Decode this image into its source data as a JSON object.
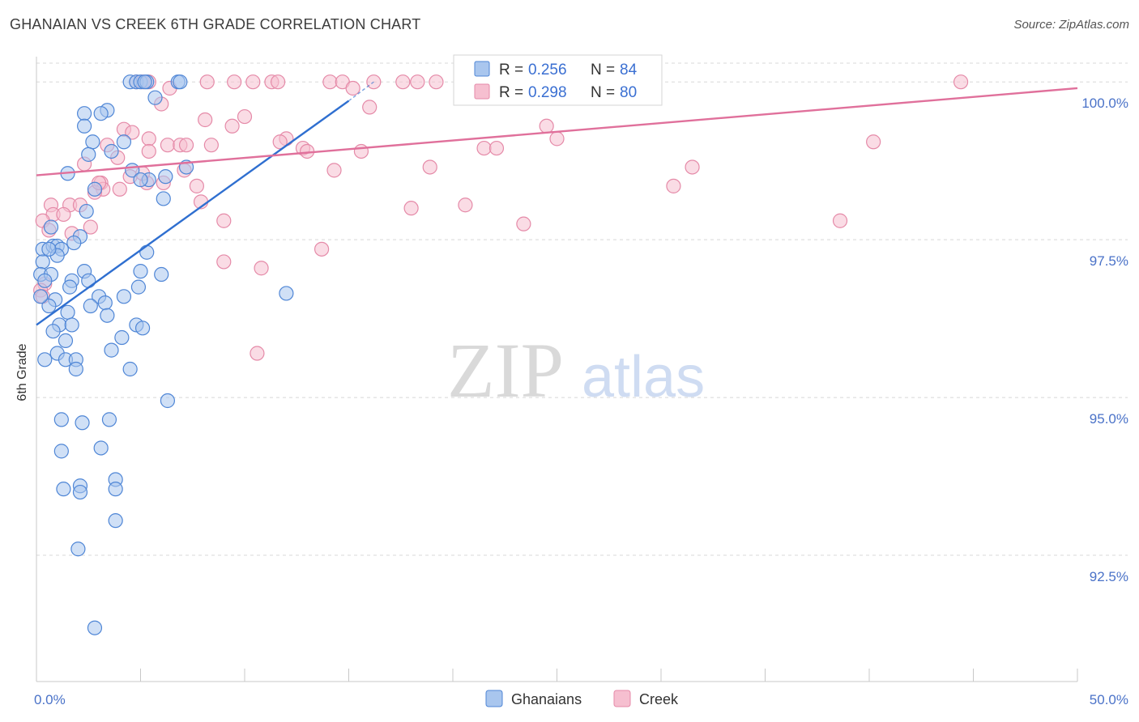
{
  "header": {
    "title": "GHANAIAN VS CREEK 6TH GRADE CORRELATION CHART",
    "source": "Source: ZipAtlas.com"
  },
  "watermark": {
    "zip": "ZIP",
    "atlas": "atlas"
  },
  "legend": {
    "rows": [
      {
        "r_label": "R = ",
        "r_value": "0.256",
        "n_label": "N = ",
        "n_value": "84"
      },
      {
        "r_label": "R = ",
        "r_value": "0.298",
        "n_label": "N = ",
        "n_value": "80"
      }
    ]
  },
  "bottom_legend": {
    "ghanaians": "Ghanaians",
    "creek": "Creek"
  },
  "colors": {
    "ghanaians_fill": "#a9c6ee",
    "ghanaians_stroke": "#4f86d6",
    "ghanaians_line": "#2f6fd0",
    "creek_fill": "#f6bfd0",
    "creek_stroke": "#e58aa8",
    "creek_line": "#e0709b",
    "grid": "#d8d8d8",
    "tick_text": "#4a72c8"
  },
  "chart_data": {
    "type": "scatter",
    "title": "GHANAIAN VS CREEK 6TH GRADE CORRELATION CHART",
    "xlabel": "",
    "ylabel": "6th Grade",
    "xlim": [
      0,
      50
    ],
    "ylim": [
      90.5,
      100.4
    ],
    "x_tick_labels": [
      {
        "value": 0,
        "label": "0.0%"
      },
      {
        "value": 50,
        "label": "50.0%"
      }
    ],
    "y_tick_labels": [
      {
        "value": 100,
        "label": "100.0%"
      },
      {
        "value": 97.5,
        "label": "97.5%"
      },
      {
        "value": 95,
        "label": "95.0%"
      },
      {
        "value": 92.5,
        "label": "92.5%"
      }
    ],
    "series": [
      {
        "name": "Ghanaians",
        "R": 0.256,
        "N": 84,
        "trend": {
          "x": [
            0,
            15
          ],
          "y": [
            96.15,
            99.7
          ],
          "dashed_extension_x": [
            15,
            16.2
          ],
          "dashed_extension_y": [
            99.7,
            100.0
          ]
        },
        "points": [
          [
            4.5,
            100
          ],
          [
            4.8,
            100
          ],
          [
            5.0,
            100
          ],
          [
            5.3,
            100
          ],
          [
            6.8,
            100
          ],
          [
            5.7,
            99.75
          ],
          [
            5.2,
            100
          ],
          [
            3.4,
            99.55
          ],
          [
            3.1,
            99.5
          ],
          [
            2.3,
            99.5
          ],
          [
            2.3,
            99.3
          ],
          [
            2.7,
            99.05
          ],
          [
            4.2,
            99.05
          ],
          [
            2.5,
            98.85
          ],
          [
            4.6,
            98.6
          ],
          [
            1.5,
            98.55
          ],
          [
            6.2,
            98.5
          ],
          [
            5.4,
            98.45
          ],
          [
            2.8,
            98.3
          ],
          [
            7.2,
            98.65
          ],
          [
            6.1,
            98.15
          ],
          [
            2.4,
            97.95
          ],
          [
            0.7,
            97.7
          ],
          [
            2.1,
            97.55
          ],
          [
            0.3,
            97.35
          ],
          [
            0.8,
            97.4
          ],
          [
            1.0,
            97.4
          ],
          [
            1.2,
            97.35
          ],
          [
            1.0,
            97.25
          ],
          [
            0.3,
            97.15
          ],
          [
            5.3,
            97.3
          ],
          [
            2.3,
            97.0
          ],
          [
            0.2,
            96.95
          ],
          [
            0.7,
            96.95
          ],
          [
            5.0,
            97.0
          ],
          [
            6.0,
            96.95
          ],
          [
            0.4,
            96.85
          ],
          [
            1.7,
            96.85
          ],
          [
            2.5,
            96.85
          ],
          [
            4.9,
            96.75
          ],
          [
            1.6,
            96.75
          ],
          [
            12.0,
            96.65
          ],
          [
            3.0,
            96.6
          ],
          [
            4.2,
            96.6
          ],
          [
            0.9,
            96.55
          ],
          [
            3.3,
            96.5
          ],
          [
            2.6,
            96.45
          ],
          [
            0.6,
            96.45
          ],
          [
            1.5,
            96.35
          ],
          [
            3.4,
            96.3
          ],
          [
            1.1,
            96.15
          ],
          [
            1.7,
            96.15
          ],
          [
            4.8,
            96.15
          ],
          [
            5.1,
            96.1
          ],
          [
            0.8,
            96.05
          ],
          [
            1.4,
            95.9
          ],
          [
            4.1,
            95.95
          ],
          [
            3.6,
            95.75
          ],
          [
            1.0,
            95.7
          ],
          [
            0.4,
            95.6
          ],
          [
            1.4,
            95.6
          ],
          [
            1.9,
            95.6
          ],
          [
            1.9,
            95.45
          ],
          [
            4.5,
            95.45
          ],
          [
            6.3,
            94.95
          ],
          [
            1.2,
            94.65
          ],
          [
            2.2,
            94.6
          ],
          [
            3.5,
            94.65
          ],
          [
            1.2,
            94.15
          ],
          [
            3.1,
            94.2
          ],
          [
            3.8,
            93.7
          ],
          [
            2.1,
            93.6
          ],
          [
            1.3,
            93.55
          ],
          [
            2.1,
            93.5
          ],
          [
            3.8,
            93.55
          ],
          [
            3.8,
            93.05
          ],
          [
            2.0,
            92.6
          ],
          [
            2.8,
            91.35
          ],
          [
            0.6,
            97.35
          ],
          [
            1.8,
            97.45
          ],
          [
            3.6,
            98.9
          ],
          [
            5.0,
            98.45
          ],
          [
            0.2,
            96.6
          ],
          [
            6.9,
            100
          ]
        ]
      },
      {
        "name": "Creek",
        "R": 0.298,
        "N": 80,
        "trend": {
          "x": [
            0,
            50
          ],
          "y": [
            98.52,
            99.9
          ]
        },
        "points": [
          [
            4.8,
            100
          ],
          [
            5.1,
            100
          ],
          [
            5.4,
            100
          ],
          [
            8.2,
            100
          ],
          [
            9.5,
            100
          ],
          [
            10.4,
            100
          ],
          [
            11.3,
            100
          ],
          [
            11.6,
            100
          ],
          [
            14.1,
            100
          ],
          [
            14.7,
            100
          ],
          [
            16.2,
            100
          ],
          [
            17.6,
            100
          ],
          [
            18.3,
            100
          ],
          [
            19.2,
            100
          ],
          [
            44.4,
            100
          ],
          [
            6.4,
            99.9
          ],
          [
            6.0,
            99.65
          ],
          [
            16.0,
            99.6
          ],
          [
            10.0,
            99.45
          ],
          [
            8.1,
            99.4
          ],
          [
            9.4,
            99.3
          ],
          [
            4.2,
            99.25
          ],
          [
            4.6,
            99.2
          ],
          [
            24.5,
            99.3
          ],
          [
            5.4,
            99.1
          ],
          [
            12.0,
            99.1
          ],
          [
            25.0,
            99.1
          ],
          [
            40.2,
            99.05
          ],
          [
            3.4,
            99.0
          ],
          [
            6.3,
            99.0
          ],
          [
            6.9,
            99.0
          ],
          [
            7.2,
            99.0
          ],
          [
            8.4,
            99.0
          ],
          [
            12.8,
            98.95
          ],
          [
            13.0,
            98.9
          ],
          [
            15.6,
            98.9
          ],
          [
            21.5,
            98.95
          ],
          [
            22.1,
            98.95
          ],
          [
            5.4,
            98.9
          ],
          [
            3.9,
            98.8
          ],
          [
            2.3,
            98.7
          ],
          [
            18.9,
            98.65
          ],
          [
            31.5,
            98.65
          ],
          [
            7.1,
            98.6
          ],
          [
            14.3,
            98.6
          ],
          [
            4.5,
            98.5
          ],
          [
            3.1,
            98.4
          ],
          [
            5.3,
            98.4
          ],
          [
            6.1,
            98.4
          ],
          [
            7.7,
            98.35
          ],
          [
            30.6,
            98.35
          ],
          [
            3.2,
            98.3
          ],
          [
            4.0,
            98.3
          ],
          [
            2.8,
            98.25
          ],
          [
            7.9,
            98.1
          ],
          [
            1.6,
            98.05
          ],
          [
            0.7,
            98.05
          ],
          [
            2.1,
            98.05
          ],
          [
            20.6,
            98.05
          ],
          [
            18.0,
            98.0
          ],
          [
            0.8,
            97.9
          ],
          [
            1.3,
            97.9
          ],
          [
            0.3,
            97.8
          ],
          [
            9.0,
            97.8
          ],
          [
            23.4,
            97.75
          ],
          [
            38.6,
            97.8
          ],
          [
            2.6,
            97.7
          ],
          [
            0.6,
            97.65
          ],
          [
            1.7,
            97.6
          ],
          [
            13.7,
            97.35
          ],
          [
            9.0,
            97.15
          ],
          [
            10.8,
            97.05
          ],
          [
            10.6,
            95.7
          ],
          [
            0.4,
            96.8
          ],
          [
            0.2,
            96.7
          ],
          [
            0.3,
            96.6
          ],
          [
            5.1,
            98.55
          ],
          [
            15.2,
            99.9
          ],
          [
            11.7,
            99.05
          ],
          [
            3.0,
            98.4
          ]
        ]
      }
    ]
  }
}
